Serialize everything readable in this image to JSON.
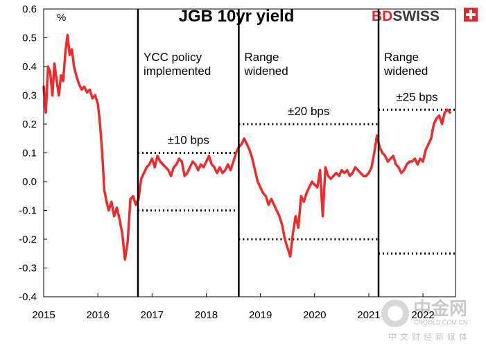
{
  "chart_data": {
    "type": "line",
    "title": "JGB 10yr yield",
    "ylabel": "%",
    "xlabel": "",
    "ylim": [
      -0.4,
      0.6
    ],
    "yticks": [
      0.6,
      0.5,
      0.4,
      0.3,
      0.2,
      0.1,
      0.0,
      -0.1,
      -0.2,
      -0.3,
      -0.4
    ],
    "ytick_labels": [
      "0.6",
      "0.5",
      "0.4",
      "0.3",
      "0.2",
      "0.1",
      "0.0",
      "-0.1",
      "-0.2",
      "-0.3",
      "-0.4"
    ],
    "xlim": [
      2015.0,
      2022.6
    ],
    "xticks": [
      2015,
      2016,
      2017,
      2018,
      2019,
      2020,
      2021,
      2022
    ],
    "xtick_labels": [
      "2015",
      "2016",
      "2017",
      "2018",
      "2019",
      "2020",
      "2021",
      "2022"
    ],
    "series": [
      {
        "name": "JGB 10yr yield",
        "color": "#ee2a2a",
        "x": [
          2015.0,
          2015.04,
          2015.08,
          2015.12,
          2015.16,
          2015.2,
          2015.24,
          2015.28,
          2015.32,
          2015.36,
          2015.4,
          2015.44,
          2015.48,
          2015.52,
          2015.56,
          2015.6,
          2015.65,
          2015.7,
          2015.75,
          2015.8,
          2015.85,
          2015.9,
          2015.95,
          2016.0,
          2016.04,
          2016.08,
          2016.12,
          2016.16,
          2016.2,
          2016.25,
          2016.3,
          2016.35,
          2016.4,
          2016.45,
          2016.5,
          2016.55,
          2016.6,
          2016.65,
          2016.7,
          2016.75,
          2016.8,
          2016.85,
          2016.9,
          2016.95,
          2017.0,
          2017.05,
          2017.1,
          2017.15,
          2017.2,
          2017.25,
          2017.3,
          2017.35,
          2017.4,
          2017.45,
          2017.5,
          2017.55,
          2017.6,
          2017.65,
          2017.7,
          2017.75,
          2017.8,
          2017.85,
          2017.9,
          2017.95,
          2018.0,
          2018.05,
          2018.1,
          2018.15,
          2018.2,
          2018.25,
          2018.3,
          2018.35,
          2018.4,
          2018.45,
          2018.5,
          2018.55,
          2018.6,
          2018.65,
          2018.7,
          2018.75,
          2018.8,
          2018.85,
          2018.9,
          2018.95,
          2019.0,
          2019.05,
          2019.1,
          2019.15,
          2019.2,
          2019.25,
          2019.3,
          2019.35,
          2019.4,
          2019.45,
          2019.5,
          2019.55,
          2019.6,
          2019.65,
          2019.7,
          2019.75,
          2019.8,
          2019.85,
          2019.9,
          2019.95,
          2020.0,
          2020.05,
          2020.1,
          2020.15,
          2020.2,
          2020.25,
          2020.3,
          2020.35,
          2020.4,
          2020.45,
          2020.5,
          2020.55,
          2020.6,
          2020.65,
          2020.7,
          2020.75,
          2020.8,
          2020.85,
          2020.9,
          2020.95,
          2021.0,
          2021.05,
          2021.1,
          2021.15,
          2021.2,
          2021.25,
          2021.3,
          2021.35,
          2021.4,
          2021.45,
          2021.5,
          2021.55,
          2021.6,
          2021.65,
          2021.7,
          2021.75,
          2021.8,
          2021.85,
          2021.9,
          2021.95,
          2022.0,
          2022.05,
          2022.1,
          2022.15,
          2022.2,
          2022.25,
          2022.3,
          2022.35,
          2022.4,
          2022.45,
          2022.5
        ],
        "values": [
          0.33,
          0.24,
          0.4,
          0.38,
          0.3,
          0.41,
          0.35,
          0.3,
          0.37,
          0.35,
          0.45,
          0.51,
          0.44,
          0.46,
          0.4,
          0.37,
          0.34,
          0.32,
          0.33,
          0.31,
          0.32,
          0.29,
          0.3,
          0.27,
          0.2,
          0.1,
          -0.03,
          -0.07,
          -0.1,
          -0.07,
          -0.12,
          -0.09,
          -0.13,
          -0.18,
          -0.27,
          -0.21,
          -0.06,
          -0.05,
          -0.08,
          -0.06,
          0.01,
          0.03,
          0.05,
          0.06,
          0.08,
          0.05,
          0.09,
          0.07,
          0.06,
          0.05,
          0.04,
          0.02,
          0.05,
          0.06,
          0.08,
          0.07,
          0.02,
          0.03,
          0.05,
          0.07,
          0.06,
          0.04,
          0.06,
          0.05,
          0.07,
          0.09,
          0.06,
          0.05,
          0.03,
          0.05,
          0.03,
          0.04,
          0.06,
          0.04,
          0.07,
          0.1,
          0.12,
          0.13,
          0.15,
          0.13,
          0.11,
          0.08,
          0.04,
          0.0,
          -0.02,
          -0.04,
          -0.05,
          -0.08,
          -0.06,
          -0.08,
          -0.1,
          -0.12,
          -0.15,
          -0.2,
          -0.23,
          -0.26,
          -0.18,
          -0.12,
          -0.16,
          -0.05,
          -0.07,
          -0.04,
          -0.02,
          0.0,
          -0.01,
          -0.02,
          0.04,
          -0.12,
          0.05,
          0.02,
          0.01,
          0.02,
          0.03,
          0.02,
          0.04,
          0.03,
          0.04,
          0.02,
          0.03,
          0.05,
          0.04,
          0.03,
          0.02,
          0.02,
          0.03,
          0.05,
          0.1,
          0.16,
          0.12,
          0.1,
          0.09,
          0.07,
          0.08,
          0.09,
          0.06,
          0.05,
          0.03,
          0.04,
          0.06,
          0.07,
          0.07,
          0.08,
          0.06,
          0.08,
          0.07,
          0.11,
          0.13,
          0.15,
          0.2,
          0.22,
          0.23,
          0.2,
          0.24,
          0.25,
          0.24
        ]
      }
    ],
    "vertical_lines": [
      {
        "x": 2016.74,
        "label": [
          "YCC policy",
          "implemented"
        ]
      },
      {
        "x": 2018.6,
        "label": [
          "Range",
          "widened"
        ]
      },
      {
        "x": 2021.18,
        "label": [
          "Range",
          "widened"
        ]
      }
    ],
    "band_lines": [
      {
        "x0": 2016.74,
        "x1": 2018.6,
        "y": 0.1,
        "label": "±10 bps",
        "label_pos": "above"
      },
      {
        "x0": 2016.74,
        "x1": 2018.6,
        "y": -0.1
      },
      {
        "x0": 2018.6,
        "x1": 2021.18,
        "y": 0.2,
        "label": "±20 bps",
        "label_pos": "above"
      },
      {
        "x0": 2018.6,
        "x1": 2021.18,
        "y": -0.2
      },
      {
        "x0": 2021.18,
        "x1": 2022.6,
        "y": 0.25,
        "label": "±25 bps",
        "label_pos": "above"
      },
      {
        "x0": 2021.18,
        "x1": 2022.6,
        "y": -0.25
      }
    ]
  },
  "brand": {
    "part1": "BD",
    "part2": "SWISS",
    "color1": "#e8262a",
    "color2": "#3a3a3a"
  },
  "watermark": {
    "main": "中金网",
    "sub": "CNGOLD.COM.CN",
    "cn": "中文财经新媒体"
  }
}
